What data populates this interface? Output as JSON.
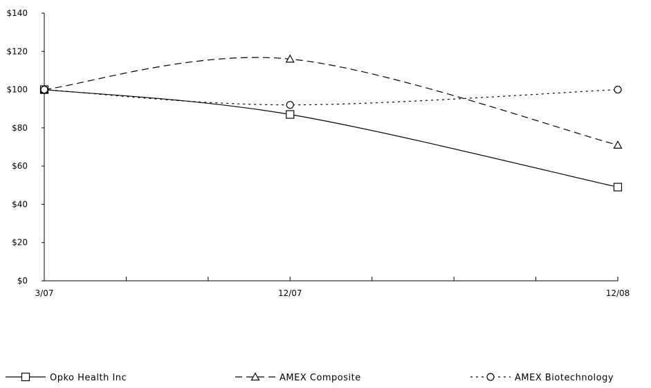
{
  "chart_data": {
    "type": "line",
    "title": "",
    "xlabel": "",
    "ylabel": "",
    "x": [
      "3/07",
      "12/07",
      "12/08"
    ],
    "x_positions": [
      0,
      9,
      21
    ],
    "x_range": [
      0,
      21
    ],
    "x_minor_ticks": [
      3,
      6,
      9,
      12,
      15,
      18,
      21
    ],
    "ylim": [
      0,
      140
    ],
    "y_ticks": [
      0,
      20,
      40,
      60,
      80,
      100,
      120,
      140
    ],
    "y_tick_labels": [
      "$0",
      "$20",
      "$40",
      "$60",
      "$80",
      "$100",
      "$120",
      "$140"
    ],
    "grid": false,
    "legend_position": "bottom",
    "series": [
      {
        "name": "Opko Health Inc",
        "values": [
          100,
          87,
          49
        ],
        "marker": "square",
        "dash": "solid",
        "color": "#000000"
      },
      {
        "name": "AMEX Composite",
        "values": [
          100,
          116,
          71
        ],
        "marker": "triangle",
        "dash": "dashed",
        "color": "#000000"
      },
      {
        "name": "AMEX Biotechnology",
        "values": [
          100,
          92,
          100
        ],
        "marker": "circle",
        "dash": "dotted",
        "color": "#000000"
      }
    ]
  }
}
